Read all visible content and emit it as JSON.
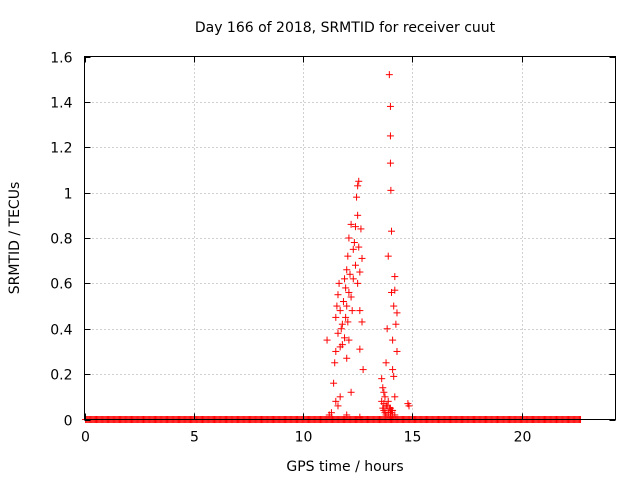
{
  "chart_data": {
    "type": "scatter",
    "title": "Day 166 of 2018, SRMTID for receiver cuut",
    "xlabel": "GPS time / hours",
    "ylabel": "SRMTID / TECUs",
    "xlim": [
      0,
      24.3
    ],
    "ylim": [
      0,
      1.6
    ],
    "xticks": [
      0,
      5,
      10,
      15,
      20
    ],
    "yticks": [
      0,
      0.2,
      0.4,
      0.6,
      0.8,
      1,
      1.2,
      1.4,
      1.6
    ],
    "ytick_labels": [
      "0",
      "0.2",
      "0.4",
      "0.6",
      "0.8",
      "1",
      "1.2",
      "1.4",
      "1.6"
    ],
    "grid": true,
    "marker": "+",
    "color": "#ff0000",
    "baseline": {
      "y": 0,
      "x_start": 0.05,
      "x_end": 22.7,
      "step": 0.05
    },
    "series": [
      {
        "name": "SRMTID",
        "x": [
          11.1,
          11.2,
          11.3,
          11.4,
          11.45,
          11.5,
          11.5,
          11.55,
          11.6,
          11.6,
          11.65,
          11.7,
          11.7,
          11.75,
          11.8,
          11.8,
          11.85,
          11.9,
          11.9,
          11.95,
          11.95,
          12.0,
          12.0,
          12.0,
          12.05,
          12.05,
          12.1,
          12.1,
          12.1,
          12.15,
          12.2,
          12.2,
          12.25,
          12.3,
          12.3,
          12.35,
          12.4,
          12.4,
          12.45,
          12.5,
          12.5,
          12.5,
          12.55,
          12.55,
          12.6,
          12.6,
          12.6,
          12.65,
          12.7,
          12.7,
          12.75,
          11.5,
          11.6,
          11.7,
          12.0,
          12.2,
          12.6,
          13.6,
          13.65,
          13.7,
          13.75,
          13.8,
          13.85,
          13.9,
          13.95,
          14.0,
          14.0,
          14.0,
          14.02,
          14.05,
          14.05,
          14.1,
          14.1,
          14.15,
          14.15,
          14.2,
          14.2,
          14.25,
          14.3,
          14.3,
          13.9,
          13.95,
          14.0,
          14.02,
          14.05,
          13.7,
          13.8,
          13.9,
          14.0,
          14.1,
          14.2,
          14.1,
          13.6,
          13.65,
          13.7,
          13.75,
          13.8,
          13.85,
          13.9,
          14.0,
          14.2,
          14.8,
          14.85
        ],
        "y": [
          0.35,
          0.02,
          0.03,
          0.16,
          0.25,
          0.3,
          0.45,
          0.5,
          0.55,
          0.38,
          0.6,
          0.32,
          0.48,
          0.4,
          0.33,
          0.42,
          0.52,
          0.62,
          0.36,
          0.58,
          0.45,
          0.66,
          0.5,
          0.27,
          0.72,
          0.43,
          0.8,
          0.56,
          0.35,
          0.64,
          0.86,
          0.54,
          0.48,
          0.75,
          0.62,
          0.78,
          0.85,
          0.68,
          0.98,
          1.03,
          0.9,
          0.6,
          1.05,
          0.76,
          0.65,
          0.48,
          0.31,
          0.84,
          0.71,
          0.43,
          0.22,
          0.08,
          0.06,
          0.1,
          0.02,
          0.12,
          0.01,
          0.18,
          0.14,
          0.12,
          0.1,
          0.25,
          0.4,
          0.72,
          1.52,
          1.38,
          1.25,
          1.13,
          1.01,
          0.83,
          0.56,
          0.35,
          0.22,
          0.19,
          0.5,
          0.63,
          0.57,
          0.42,
          0.47,
          0.3,
          0.08,
          0.05,
          0.05,
          0.03,
          0.04,
          0.07,
          0.06,
          0.03,
          0.02,
          0.04,
          0.1,
          0.02,
          0.08,
          0.05,
          0.04,
          0.03,
          0.02,
          0.06,
          0.03,
          0.01,
          0.02,
          0.07,
          0.06
        ]
      }
    ]
  }
}
